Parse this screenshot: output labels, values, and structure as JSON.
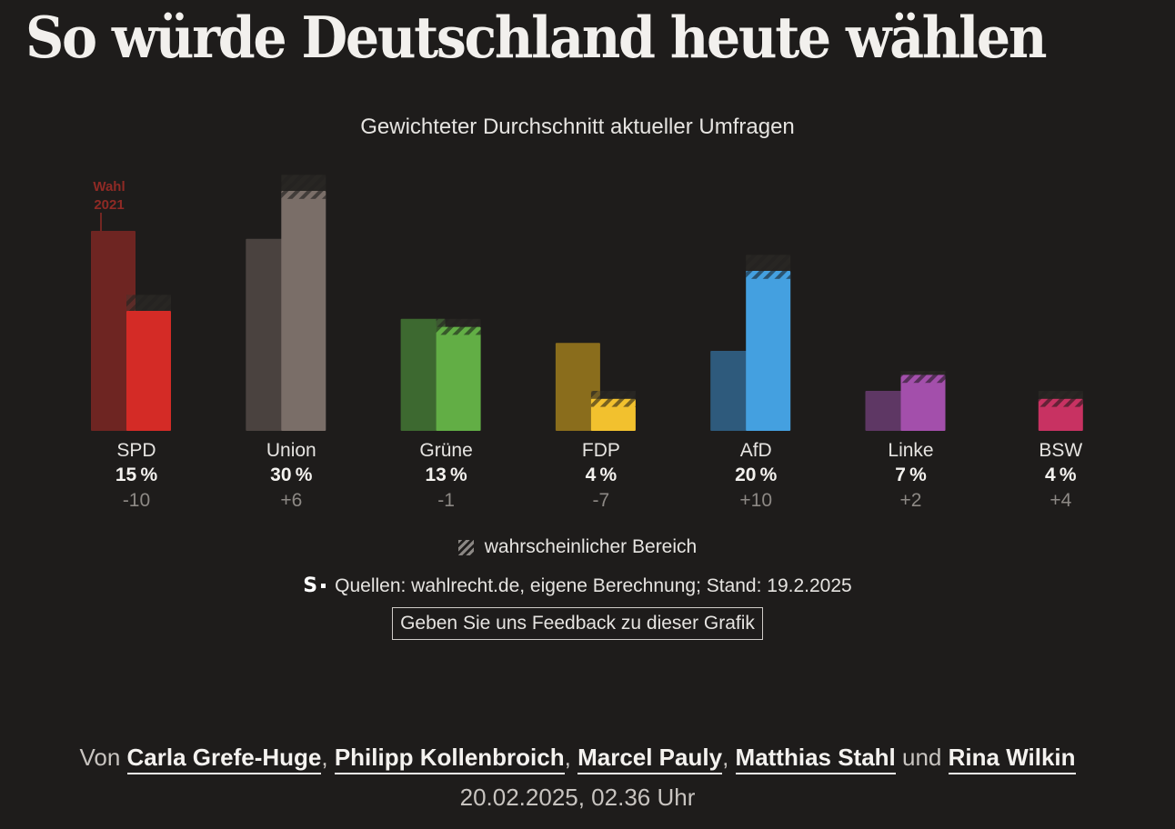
{
  "headline": "So würde Deutschland heute wählen",
  "chart_data": {
    "type": "bar",
    "title": "Gewichteter Durchschnitt aktueller Umfragen",
    "annotation_prev": "Wahl\n2021",
    "previous_label": "Wahl 2021",
    "percent_suffix": "%",
    "parties": [
      {
        "name": "SPD",
        "current": 15,
        "previous": 25,
        "change": "-10",
        "range_low": 15,
        "range_high": 17,
        "color": "#d42b26",
        "prev_color": "#6e2522"
      },
      {
        "name": "Union",
        "current": 30,
        "previous": 24,
        "change": "+6",
        "range_low": 29,
        "range_high": 32,
        "color": "#7a6e68",
        "prev_color": "#4a423f"
      },
      {
        "name": "Grüne",
        "current": 13,
        "previous": 14,
        "change": "-1",
        "range_low": 12,
        "range_high": 14,
        "color": "#62ae45",
        "prev_color": "#3d6930"
      },
      {
        "name": "FDP",
        "current": 4,
        "previous": 11,
        "change": "-7",
        "range_low": 3,
        "range_high": 5,
        "color": "#f2c12e",
        "prev_color": "#8a6d1c"
      },
      {
        "name": "AfD",
        "current": 20,
        "previous": 10,
        "change": "+10",
        "range_low": 19,
        "range_high": 22,
        "color": "#44a0e0",
        "prev_color": "#2e5a7c"
      },
      {
        "name": "Linke",
        "current": 7,
        "previous": 5,
        "change": "+2",
        "range_low": 6,
        "range_high": 7.5,
        "color": "#a34fab",
        "prev_color": "#5e3764"
      },
      {
        "name": "BSW",
        "current": 4,
        "previous": null,
        "change": "+4",
        "range_low": 3,
        "range_high": 5,
        "color": "#c83262",
        "prev_color": null
      }
    ],
    "ylim": [
      0,
      32
    ]
  },
  "legend": {
    "range_label": "wahrscheinlicher Bereich"
  },
  "sources": {
    "logo": "S",
    "text": "Quellen: wahlrecht.de, eigene Berechnung; Stand: 19.2.2025"
  },
  "feedback": {
    "label": "Geben Sie uns Feedback zu dieser Grafik"
  },
  "byline": {
    "prefix": "Von",
    "authors": [
      "Carla Grefe-Huge",
      "Philipp Kollenbroich",
      "Marcel Pauly",
      "Matthias Stahl",
      "Rina Wilkin"
    ],
    "separator": ",",
    "conjunction": "und"
  },
  "dateline": "20.02.2025, 02.36 Uhr"
}
